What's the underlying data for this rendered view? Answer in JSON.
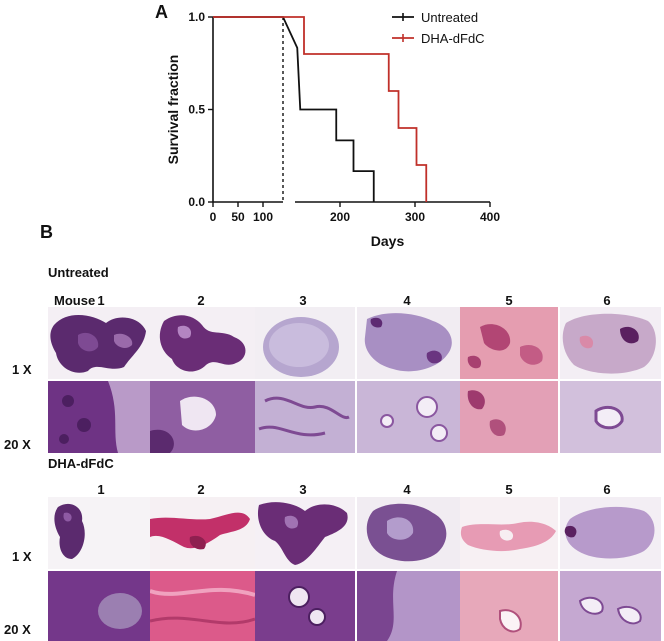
{
  "panelA": {
    "letter": "A",
    "chart_data": {
      "type": "line",
      "subtype": "kaplan-meier survival curve with broken x-axis",
      "xlabel": "Days",
      "ylabel": "Survival fraction",
      "x_ticks_left_segment": [
        "0",
        "50",
        "100"
      ],
      "x_ticks_right_segment": [
        "200",
        "300",
        "400"
      ],
      "y_ticks": [
        "0.0",
        "0.5",
        "1.0"
      ],
      "xlim_segments": [
        [
          0,
          140
        ],
        [
          140,
          400
        ]
      ],
      "ylim": [
        0,
        1
      ],
      "legend_position": "top-right",
      "series": [
        {
          "name": "Untreated",
          "color": "#111111",
          "steps": [
            [
              0,
              1.0
            ],
            [
              140,
              1.0
            ],
            [
              143,
              0.833
            ],
            [
              145,
              0.667
            ],
            [
              147,
              0.5
            ],
            [
              195,
              0.5
            ],
            [
              195,
              0.333
            ],
            [
              218,
              0.333
            ],
            [
              218,
              0.167
            ],
            [
              245,
              0.167
            ],
            [
              245,
              0.0
            ]
          ]
        },
        {
          "name": "DHA-dFdC",
          "color": "#c0302a",
          "steps": [
            [
              0,
              1.0
            ],
            [
              152,
              1.0
            ],
            [
              152,
              0.8
            ],
            [
              265,
              0.8
            ],
            [
              265,
              0.6
            ],
            [
              278,
              0.6
            ],
            [
              278,
              0.4
            ],
            [
              302,
              0.4
            ],
            [
              302,
              0.2
            ],
            [
              315,
              0.2
            ],
            [
              315,
              0.0
            ]
          ]
        }
      ]
    }
  },
  "panelB": {
    "letter": "B",
    "untreated_title": "Untreated",
    "treated_title": "DHA-dFdC",
    "mouse_prefix": "Mouse",
    "mouse_numbers": [
      "1",
      "2",
      "3",
      "4",
      "5",
      "6"
    ],
    "mag_low": "1 X",
    "mag_high": "20 X"
  }
}
